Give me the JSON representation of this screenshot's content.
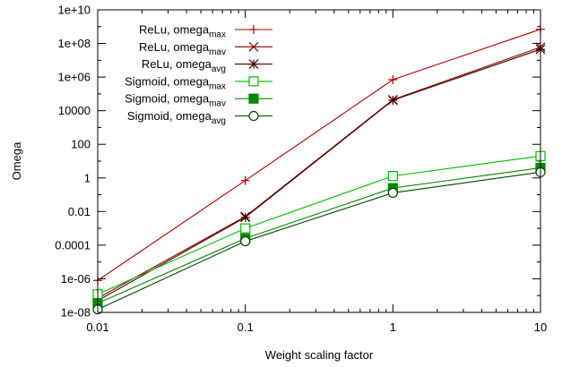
{
  "chart_data": {
    "type": "line",
    "xlabel": "Weight scaling factor",
    "ylabel": "Omega",
    "x_scale": "log",
    "y_scale": "log",
    "xlim": [
      0.01,
      10
    ],
    "ylim": [
      1e-08,
      10000000000.0
    ],
    "x_ticks": [
      0.01,
      0.1,
      1,
      10
    ],
    "x_tick_labels": [
      "0.01",
      "0.1",
      "1",
      "10"
    ],
    "y_ticks": [
      1e-08,
      1e-06,
      0.0001,
      0.01,
      1,
      100,
      10000,
      1000000,
      100000000,
      10000000000
    ],
    "y_tick_labels": [
      "1e-08",
      "1e-06",
      "0.0001",
      "0.01",
      "1",
      "100",
      "10000",
      "1e+06",
      "1e+08",
      "1e+10"
    ],
    "grid": false,
    "legend_position": "top-left",
    "x": [
      0.01,
      0.1,
      1,
      10
    ],
    "series": [
      {
        "name": "ReLu, omega",
        "subscript": "max",
        "color": "#aa0000",
        "marker": "plus",
        "values": [
          8e-07,
          0.7,
          700000,
          700000000
        ]
      },
      {
        "name": "ReLu, omega",
        "subscript": "mav",
        "color": "#880000",
        "marker": "cross",
        "values": [
          7e-08,
          0.005,
          45000,
          60000000
        ]
      },
      {
        "name": "ReLu, omega",
        "subscript": "avg",
        "color": "#440000",
        "marker": "star",
        "values": [
          5e-08,
          0.0045,
          42000,
          45000000
        ]
      },
      {
        "name": "Sigmoid, omega",
        "subscript": "max",
        "color": "#00bb00",
        "marker": "open-square",
        "values": [
          1.2e-07,
          0.001,
          1.3,
          20
        ]
      },
      {
        "name": "Sigmoid, omega",
        "subscript": "mav",
        "color": "#008800",
        "marker": "filled-square",
        "values": [
          3.5e-08,
          0.00025,
          0.25,
          4
        ]
      },
      {
        "name": "Sigmoid, omega",
        "subscript": "avg",
        "color": "#004400",
        "marker": "open-circle",
        "values": [
          1.5e-08,
          0.00017,
          0.13,
          2.2
        ]
      }
    ]
  }
}
